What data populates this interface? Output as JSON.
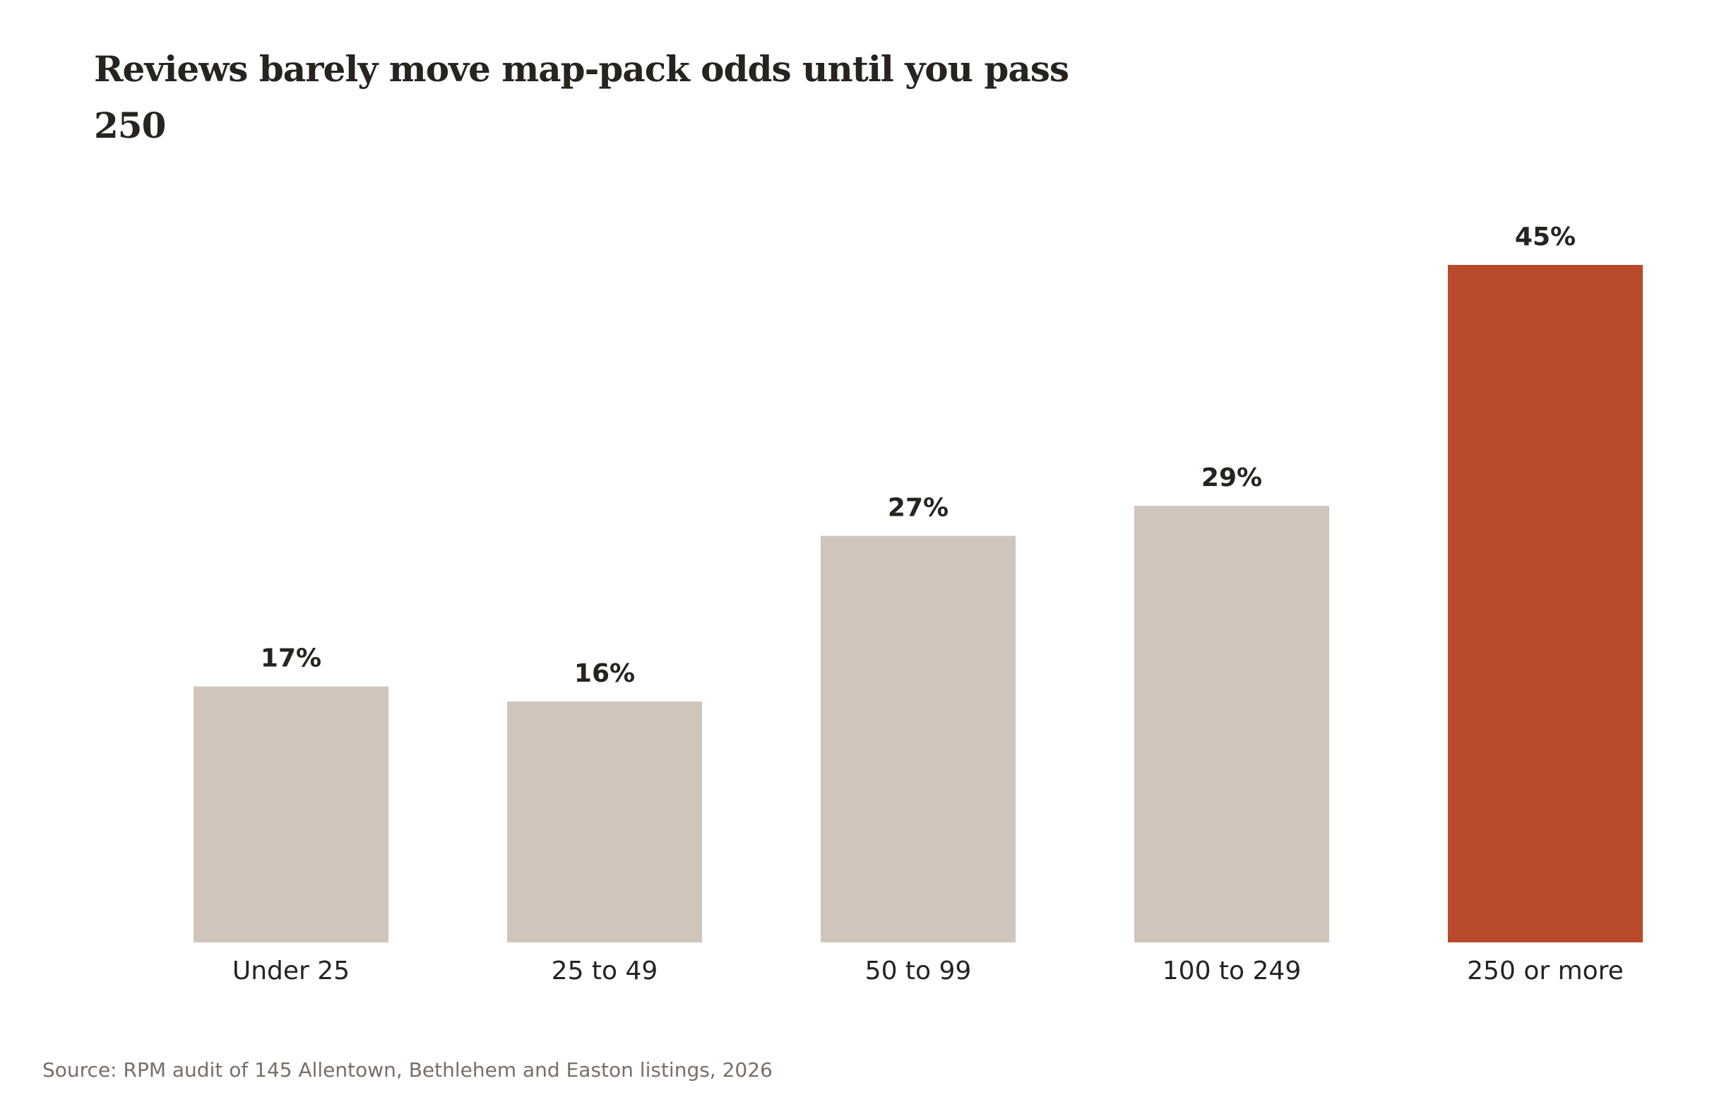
{
  "title": "Reviews barely move map-pack odds until you pass 250",
  "source": "Source: RPM audit of 145 Allentown, Bethlehem and Easton listings, 2026",
  "colors": {
    "bar": "#d0c5bb",
    "highlight": "#b94a2c",
    "text": "#27231e",
    "muted": "#7a6e66"
  },
  "chart_data": {
    "type": "bar",
    "categories": [
      "Under 25",
      "25 to 49",
      "50 to 99",
      "100 to 249",
      "250 or more"
    ],
    "values": [
      17,
      16,
      27,
      29,
      45
    ],
    "value_labels": [
      "17%",
      "16%",
      "27%",
      "29%",
      "45%"
    ],
    "highlight_index": 4,
    "title": "Reviews barely move map-pack odds until you pass 250",
    "xlabel": "",
    "ylabel": "",
    "ylim": [
      0,
      45
    ],
    "grid": false,
    "legend": "none"
  }
}
